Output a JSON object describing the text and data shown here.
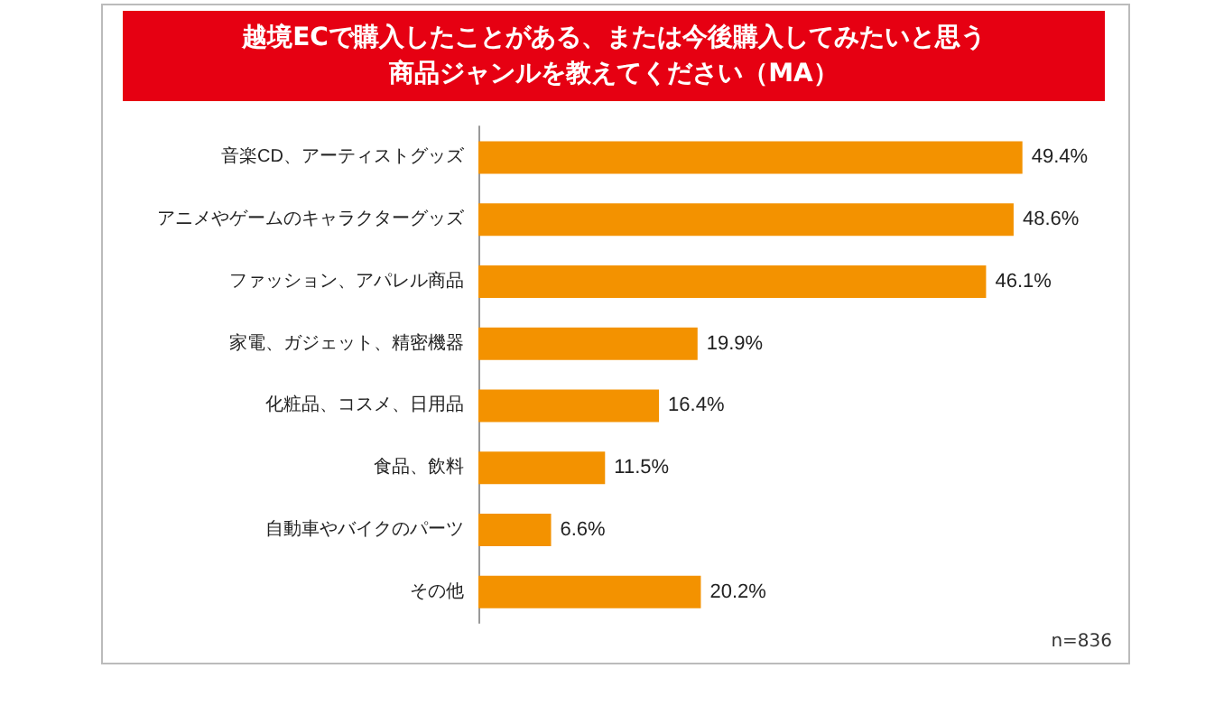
{
  "chart_data": {
    "type": "bar",
    "orientation": "horizontal",
    "title": "越境ECで購入したことがある、または今後購入してみたいと思う商品ジャンルを教えてください（MA）",
    "categories": [
      "音楽CD、アーティストグッズ",
      "アニメやゲームのキャラクターグッズ",
      "ファッション、アパレル商品",
      "家電、ガジェット、精密機器",
      "化粧品、コスメ、日用品",
      "食品、飲料",
      "自動車やバイクのパーツ",
      "その他"
    ],
    "values": [
      49.4,
      48.6,
      46.1,
      19.9,
      16.4,
      11.5,
      6.6,
      20.2
    ],
    "value_labels": [
      "49.4%",
      "48.6%",
      "46.1%",
      "19.9%",
      "16.4%",
      "11.5%",
      "6.6%",
      "20.2%"
    ],
    "color": "#f39200",
    "annotations": [
      "n=836"
    ]
  }
}
